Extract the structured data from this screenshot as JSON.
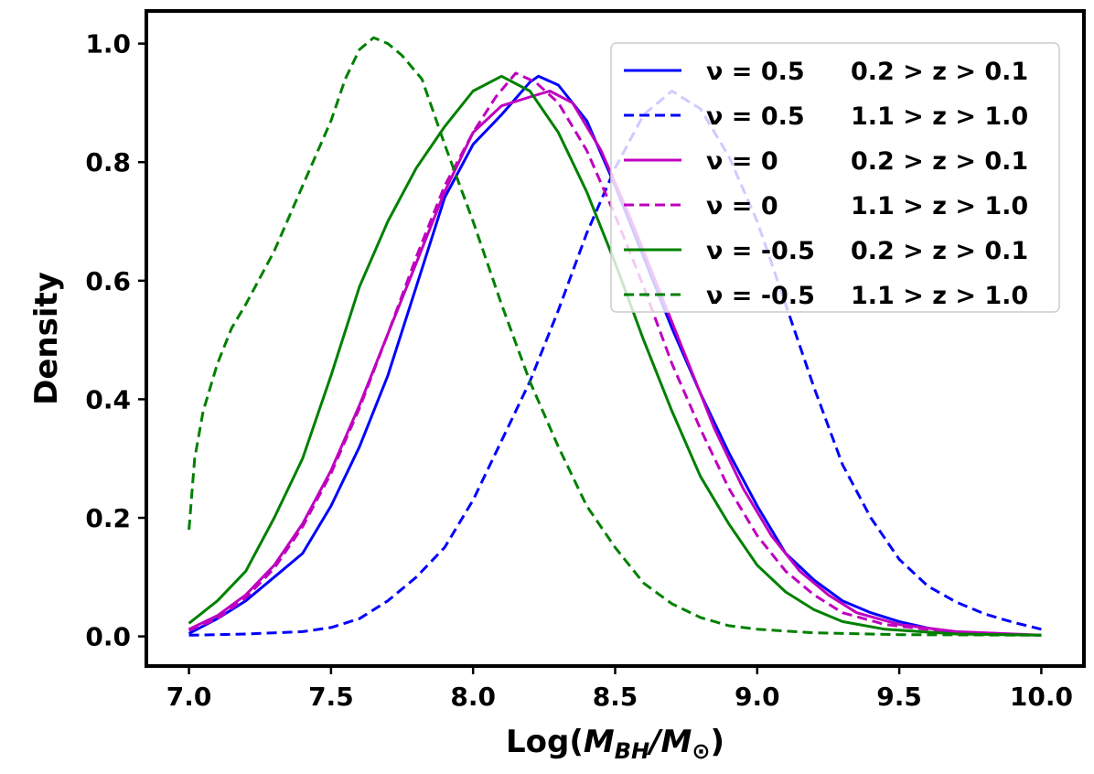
{
  "chart_data": {
    "type": "line",
    "title": "",
    "xlabel_prefix": "Log(",
    "xlabel_math": "M",
    "xlabel_sub1": "BH",
    "xlabel_slash": "/M",
    "xlabel_sub2": "⊙",
    "xlabel_suffix": ")",
    "ylabel": "Density",
    "xlim": [
      6.85,
      10.15
    ],
    "ylim": [
      -0.05,
      1.055
    ],
    "xticks": [
      7.0,
      7.5,
      8.0,
      8.5,
      9.0,
      9.5,
      10.0
    ],
    "xtick_labels": [
      "7.0",
      "7.5",
      "8.0",
      "8.5",
      "9.0",
      "9.5",
      "10.0"
    ],
    "yticks": [
      0.0,
      0.2,
      0.4,
      0.6,
      0.8,
      1.0
    ],
    "ytick_labels": [
      "0.0",
      "0.2",
      "0.4",
      "0.6",
      "0.8",
      "1.0"
    ],
    "legend_position": "top-right",
    "series": [
      {
        "name": "ν = 0.5   0.2 > z > 0.1",
        "legend_nu": "ν = 0.5",
        "legend_z": "0.2 > z > 0.1",
        "color": "#0000ff",
        "dash": "solid",
        "points": [
          [
            7.0,
            0.005
          ],
          [
            7.1,
            0.03
          ],
          [
            7.2,
            0.06
          ],
          [
            7.3,
            0.1
          ],
          [
            7.4,
            0.14
          ],
          [
            7.5,
            0.22
          ],
          [
            7.6,
            0.32
          ],
          [
            7.7,
            0.44
          ],
          [
            7.8,
            0.59
          ],
          [
            7.9,
            0.74
          ],
          [
            8.0,
            0.83
          ],
          [
            8.1,
            0.88
          ],
          [
            8.2,
            0.935
          ],
          [
            8.23,
            0.945
          ],
          [
            8.3,
            0.93
          ],
          [
            8.4,
            0.87
          ],
          [
            8.5,
            0.76
          ],
          [
            8.6,
            0.64
          ],
          [
            8.7,
            0.52
          ],
          [
            8.8,
            0.41
          ],
          [
            8.9,
            0.31
          ],
          [
            9.0,
            0.22
          ],
          [
            9.1,
            0.14
          ],
          [
            9.2,
            0.095
          ],
          [
            9.3,
            0.06
          ],
          [
            9.4,
            0.04
          ],
          [
            9.5,
            0.025
          ],
          [
            9.6,
            0.014
          ],
          [
            9.7,
            0.007
          ],
          [
            9.8,
            0.004
          ],
          [
            10.0,
            0.002
          ]
        ]
      },
      {
        "name": "ν = 0.5   1.1 > z > 1.0",
        "legend_nu": "ν = 0.5",
        "legend_z": "1.1 > z > 1.0",
        "color": "#0000ff",
        "dash": "dashed",
        "points": [
          [
            7.0,
            0.002
          ],
          [
            7.2,
            0.004
          ],
          [
            7.4,
            0.008
          ],
          [
            7.5,
            0.015
          ],
          [
            7.6,
            0.03
          ],
          [
            7.7,
            0.06
          ],
          [
            7.8,
            0.1
          ],
          [
            7.9,
            0.15
          ],
          [
            8.0,
            0.23
          ],
          [
            8.1,
            0.33
          ],
          [
            8.2,
            0.43
          ],
          [
            8.3,
            0.55
          ],
          [
            8.4,
            0.68
          ],
          [
            8.5,
            0.79
          ],
          [
            8.6,
            0.88
          ],
          [
            8.7,
            0.92
          ],
          [
            8.8,
            0.89
          ],
          [
            8.9,
            0.81
          ],
          [
            9.0,
            0.7
          ],
          [
            9.1,
            0.56
          ],
          [
            9.2,
            0.42
          ],
          [
            9.3,
            0.29
          ],
          [
            9.4,
            0.2
          ],
          [
            9.5,
            0.13
          ],
          [
            9.6,
            0.085
          ],
          [
            9.7,
            0.058
          ],
          [
            9.8,
            0.038
          ],
          [
            9.9,
            0.024
          ],
          [
            10.0,
            0.012
          ]
        ]
      },
      {
        "name": "ν = 0   0.2 > z > 0.1",
        "legend_nu": "ν = 0",
        "legend_z": "0.2 > z > 0.1",
        "color": "#bf00bf",
        "dash": "solid",
        "points": [
          [
            7.0,
            0.012
          ],
          [
            7.1,
            0.035
          ],
          [
            7.2,
            0.07
          ],
          [
            7.3,
            0.12
          ],
          [
            7.4,
            0.19
          ],
          [
            7.5,
            0.28
          ],
          [
            7.6,
            0.39
          ],
          [
            7.7,
            0.51
          ],
          [
            7.8,
            0.63
          ],
          [
            7.9,
            0.75
          ],
          [
            8.0,
            0.85
          ],
          [
            8.1,
            0.895
          ],
          [
            8.2,
            0.91
          ],
          [
            8.27,
            0.92
          ],
          [
            8.35,
            0.9
          ],
          [
            8.45,
            0.82
          ],
          [
            8.55,
            0.71
          ],
          [
            8.65,
            0.59
          ],
          [
            8.75,
            0.47
          ],
          [
            8.85,
            0.35
          ],
          [
            8.95,
            0.25
          ],
          [
            9.05,
            0.17
          ],
          [
            9.15,
            0.11
          ],
          [
            9.25,
            0.07
          ],
          [
            9.35,
            0.04
          ],
          [
            9.5,
            0.02
          ],
          [
            9.7,
            0.008
          ],
          [
            10.0,
            0.002
          ]
        ]
      },
      {
        "name": "ν = 0   1.1 > z > 1.0",
        "legend_nu": "ν = 0",
        "legend_z": "1.1 > z > 1.0",
        "color": "#bf00bf",
        "dash": "dashed",
        "points": [
          [
            7.0,
            0.01
          ],
          [
            7.1,
            0.03
          ],
          [
            7.2,
            0.065
          ],
          [
            7.3,
            0.115
          ],
          [
            7.4,
            0.185
          ],
          [
            7.5,
            0.275
          ],
          [
            7.6,
            0.385
          ],
          [
            7.7,
            0.51
          ],
          [
            7.8,
            0.64
          ],
          [
            7.9,
            0.76
          ],
          [
            8.0,
            0.85
          ],
          [
            8.08,
            0.91
          ],
          [
            8.15,
            0.95
          ],
          [
            8.22,
            0.935
          ],
          [
            8.3,
            0.9
          ],
          [
            8.4,
            0.82
          ],
          [
            8.5,
            0.71
          ],
          [
            8.6,
            0.59
          ],
          [
            8.7,
            0.46
          ],
          [
            8.8,
            0.35
          ],
          [
            8.9,
            0.25
          ],
          [
            9.0,
            0.17
          ],
          [
            9.1,
            0.11
          ],
          [
            9.2,
            0.07
          ],
          [
            9.3,
            0.04
          ],
          [
            9.45,
            0.02
          ],
          [
            9.7,
            0.006
          ],
          [
            10.0,
            0.002
          ]
        ]
      },
      {
        "name": "ν = -0.5   0.2 > z > 0.1",
        "legend_nu": "ν = -0.5",
        "legend_z": "0.2 > z > 0.1",
        "color": "#008000",
        "dash": "solid",
        "points": [
          [
            7.0,
            0.022
          ],
          [
            7.1,
            0.06
          ],
          [
            7.2,
            0.11
          ],
          [
            7.3,
            0.2
          ],
          [
            7.4,
            0.3
          ],
          [
            7.5,
            0.44
          ],
          [
            7.6,
            0.59
          ],
          [
            7.7,
            0.7
          ],
          [
            7.8,
            0.79
          ],
          [
            7.9,
            0.86
          ],
          [
            8.0,
            0.92
          ],
          [
            8.1,
            0.945
          ],
          [
            8.2,
            0.92
          ],
          [
            8.3,
            0.85
          ],
          [
            8.4,
            0.75
          ],
          [
            8.5,
            0.63
          ],
          [
            8.6,
            0.5
          ],
          [
            8.7,
            0.38
          ],
          [
            8.8,
            0.27
          ],
          [
            8.9,
            0.19
          ],
          [
            9.0,
            0.12
          ],
          [
            9.1,
            0.075
          ],
          [
            9.2,
            0.045
          ],
          [
            9.3,
            0.025
          ],
          [
            9.45,
            0.012
          ],
          [
            9.7,
            0.004
          ],
          [
            10.0,
            0.002
          ]
        ]
      },
      {
        "name": "ν = -0.5   1.1 > z > 1.0",
        "legend_nu": "ν = -0.5",
        "legend_z": "1.1 > z > 1.0",
        "color": "#008000",
        "dash": "dashed",
        "points": [
          [
            7.0,
            0.18
          ],
          [
            7.02,
            0.3
          ],
          [
            7.05,
            0.38
          ],
          [
            7.1,
            0.46
          ],
          [
            7.15,
            0.52
          ],
          [
            7.2,
            0.56
          ],
          [
            7.3,
            0.65
          ],
          [
            7.4,
            0.76
          ],
          [
            7.5,
            0.87
          ],
          [
            7.55,
            0.94
          ],
          [
            7.6,
            0.99
          ],
          [
            7.65,
            1.01
          ],
          [
            7.7,
            1.0
          ],
          [
            7.75,
            0.98
          ],
          [
            7.82,
            0.94
          ],
          [
            7.9,
            0.83
          ],
          [
            8.0,
            0.7
          ],
          [
            8.1,
            0.56
          ],
          [
            8.2,
            0.43
          ],
          [
            8.3,
            0.32
          ],
          [
            8.4,
            0.22
          ],
          [
            8.5,
            0.15
          ],
          [
            8.6,
            0.09
          ],
          [
            8.7,
            0.055
          ],
          [
            8.8,
            0.032
          ],
          [
            8.9,
            0.018
          ],
          [
            9.0,
            0.012
          ],
          [
            9.2,
            0.006
          ],
          [
            9.5,
            0.003
          ],
          [
            10.0,
            0.002
          ]
        ]
      }
    ]
  }
}
